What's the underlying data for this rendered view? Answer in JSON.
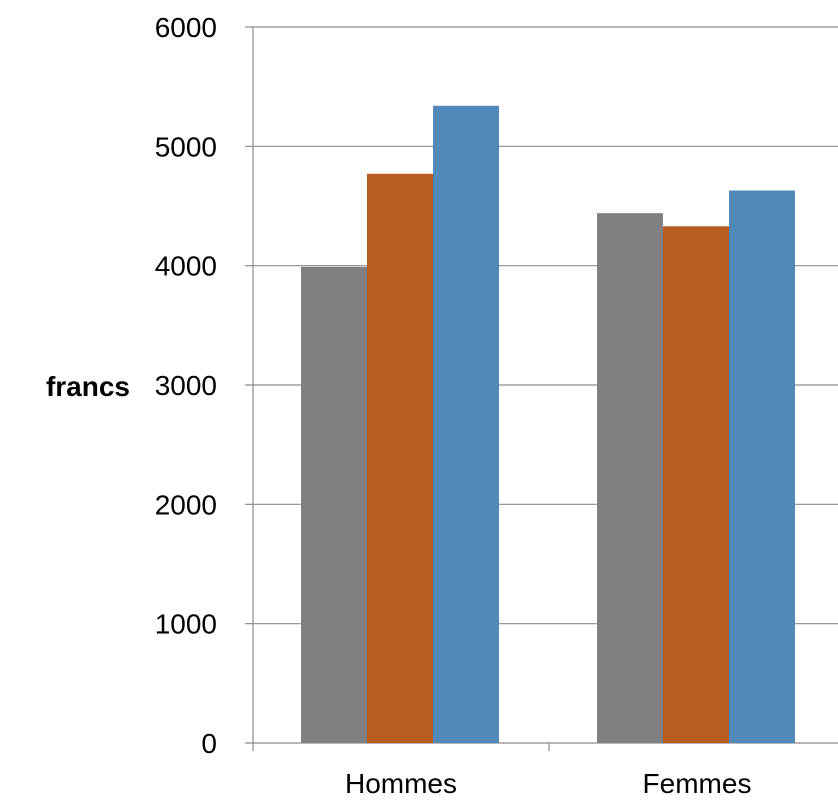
{
  "chart_data": {
    "type": "bar",
    "title": "",
    "ylabel": "francs",
    "xlabel": "",
    "ylim": [
      0,
      6000
    ],
    "yticks": [
      0,
      1000,
      2000,
      3000,
      4000,
      5000,
      6000
    ],
    "grid": true,
    "categories": [
      "Hommes",
      "Femmes"
    ],
    "series": [
      {
        "color": "#808080",
        "values": [
          3990,
          4440
        ]
      },
      {
        "color": "#B85C24",
        "values": [
          4770,
          4330
        ]
      },
      {
        "color": "#5189B9",
        "values": [
          5340,
          4630
        ]
      }
    ]
  }
}
